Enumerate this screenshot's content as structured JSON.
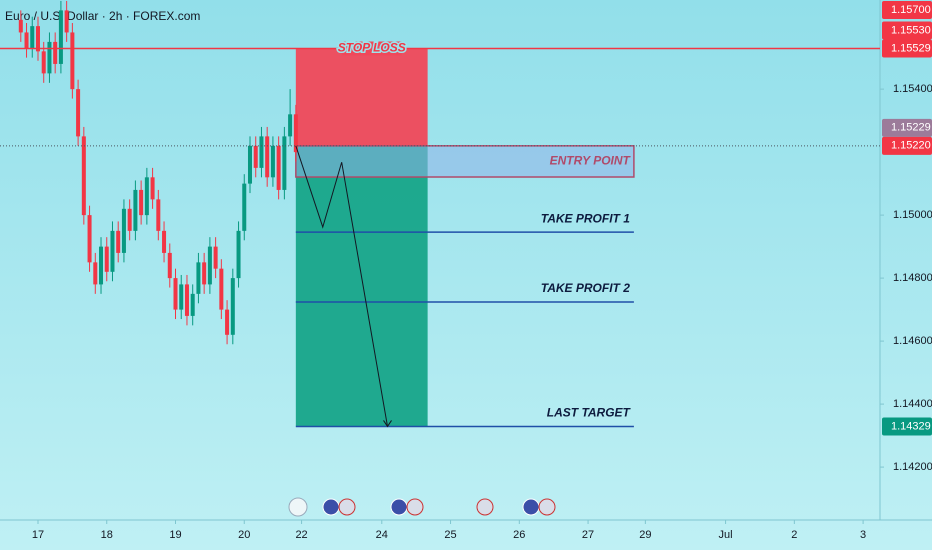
{
  "chart_data": {
    "type": "candlestick",
    "title": "Euro / U.S. Dollar · 2h · FOREX.com",
    "x": [
      -3,
      -2,
      -1,
      0,
      1,
      2,
      3,
      4,
      5,
      6,
      7,
      8,
      9,
      10,
      11,
      12,
      13,
      14,
      15,
      16,
      17,
      18,
      19,
      20,
      21,
      22,
      23,
      24,
      25,
      26,
      27,
      28,
      29,
      30,
      31,
      32,
      33,
      34,
      35,
      36,
      37,
      38,
      39,
      40,
      41,
      42,
      43,
      44,
      45
    ],
    "open": [
      1.1562,
      1.1558,
      1.1553,
      1.156,
      1.1552,
      1.1545,
      1.1555,
      1.1548,
      1.1565,
      1.1558,
      1.154,
      1.1525,
      1.15,
      1.1485,
      1.1478,
      1.149,
      1.1482,
      1.1495,
      1.1488,
      1.1502,
      1.1495,
      1.1508,
      1.15,
      1.1512,
      1.1505,
      1.1495,
      1.1488,
      1.148,
      1.147,
      1.1478,
      1.1468,
      1.1475,
      1.1485,
      1.1478,
      1.149,
      1.1483,
      1.147,
      1.1462,
      1.148,
      1.1495,
      1.151,
      1.1522,
      1.1515,
      1.1525,
      1.1512,
      1.1522,
      1.1508,
      1.1525,
      1.1532
    ],
    "high": [
      1.1565,
      1.1561,
      1.1563,
      1.1563,
      1.1555,
      1.1558,
      1.1558,
      1.1568,
      1.1568,
      1.1561,
      1.1543,
      1.1528,
      1.1503,
      1.1488,
      1.1493,
      1.1493,
      1.1498,
      1.1498,
      1.1505,
      1.1505,
      1.1511,
      1.1511,
      1.1515,
      1.1515,
      1.1508,
      1.1498,
      1.1491,
      1.1483,
      1.1481,
      1.1481,
      1.1478,
      1.1488,
      1.1488,
      1.1493,
      1.1493,
      1.1486,
      1.1473,
      1.1483,
      1.1498,
      1.1513,
      1.1525,
      1.1525,
      1.1528,
      1.1528,
      1.1525,
      1.1525,
      1.1528,
      1.154,
      1.1535
    ],
    "low": [
      1.1555,
      1.155,
      1.155,
      1.1549,
      1.1542,
      1.1542,
      1.1545,
      1.1545,
      1.1555,
      1.1537,
      1.1522,
      1.1497,
      1.1482,
      1.1475,
      1.1475,
      1.1479,
      1.1479,
      1.1485,
      1.1485,
      1.1492,
      1.1492,
      1.1497,
      1.1497,
      1.1502,
      1.1492,
      1.1485,
      1.1477,
      1.1467,
      1.1467,
      1.1465,
      1.1465,
      1.1472,
      1.1475,
      1.1475,
      1.148,
      1.1467,
      1.1459,
      1.1459,
      1.1477,
      1.1492,
      1.1507,
      1.1512,
      1.1512,
      1.1509,
      1.1509,
      1.1505,
      1.1505,
      1.1522,
      1.1517
    ],
    "close": [
      1.1558,
      1.1553,
      1.156,
      1.1552,
      1.1545,
      1.1555,
      1.1548,
      1.1565,
      1.1558,
      1.154,
      1.1525,
      1.15,
      1.1485,
      1.1478,
      1.149,
      1.1482,
      1.1495,
      1.1488,
      1.1502,
      1.1495,
      1.1508,
      1.15,
      1.1512,
      1.1505,
      1.1495,
      1.1488,
      1.148,
      1.147,
      1.1478,
      1.1468,
      1.1475,
      1.1485,
      1.1478,
      1.149,
      1.1483,
      1.147,
      1.1462,
      1.148,
      1.1495,
      1.151,
      1.1522,
      1.1515,
      1.1525,
      1.1512,
      1.1522,
      1.1508,
      1.1525,
      1.1532,
      1.152
    ],
    "up_color": "#089981",
    "down_color": "#f23645",
    "xlim": [
      -6.63,
      146.95
    ],
    "ylim": [
      1.14032,
      1.15683
    ],
    "xticks": [
      {
        "value": 0,
        "label": "17"
      },
      {
        "value": 12,
        "label": "18"
      },
      {
        "value": 24,
        "label": "19"
      },
      {
        "value": 36,
        "label": "20"
      },
      {
        "value": 46,
        "label": "22"
      },
      {
        "value": 60,
        "label": "24"
      },
      {
        "value": 72,
        "label": "25"
      },
      {
        "value": 84,
        "label": "26"
      },
      {
        "value": 96,
        "label": "27"
      },
      {
        "value": 106,
        "label": "29"
      },
      {
        "value": 120,
        "label": "Jul"
      },
      {
        "value": 132,
        "label": "2"
      },
      {
        "value": 144,
        "label": "3"
      }
    ],
    "yticks": [
      {
        "value": 1.154,
        "label": "1.15400"
      },
      {
        "value": 1.15,
        "label": "1.15000"
      },
      {
        "value": 1.148,
        "label": "1.14800"
      },
      {
        "value": 1.146,
        "label": "1.14600"
      },
      {
        "value": 1.144,
        "label": "1.14400"
      },
      {
        "value": 1.142,
        "label": "1.14200"
      }
    ],
    "price_labels": [
      {
        "value": 1.157,
        "label": "1.15700",
        "color": "#f23645"
      },
      {
        "value": 1.1553,
        "label": "1.15530",
        "color": "#f23645"
      },
      {
        "value": 1.15529,
        "label": "1.15529",
        "color": "#f23645"
      },
      {
        "value": 1.15229,
        "label": "1.15229",
        "color": "#9c7b9a"
      },
      {
        "value": 1.1522,
        "label": "1.15220",
        "color": "#f23645",
        "dotted": true
      },
      {
        "value": 1.14329,
        "label": "1.14329",
        "color": "#089981"
      }
    ],
    "stop_loss": {
      "value": 1.15529,
      "label": "STOP LOSS",
      "color": "#f23645"
    },
    "stop_zone": {
      "x": [
        45,
        68
      ],
      "y": [
        1.1522,
        1.15529
      ],
      "color": "#f0485a"
    },
    "profit_zone": {
      "x": [
        45,
        68
      ],
      "y": [
        1.14329,
        1.1522
      ],
      "color": "#17a589"
    },
    "entry_zone": {
      "label": "ENTRY POINT",
      "x": [
        45,
        104
      ],
      "y": [
        1.15121,
        1.1522
      ],
      "color": "#b04a6a"
    },
    "targets": [
      {
        "label": "TAKE PROFIT 1",
        "value": 1.14946
      },
      {
        "label": "TAKE PROFIT 2",
        "value": 1.14724
      },
      {
        "label": "LAST TARGET",
        "value": 1.14329
      }
    ],
    "target_x": [
      45,
      104
    ],
    "target_color": "#1f4fa8",
    "path": {
      "x": [
        45,
        49.7,
        53,
        61
      ],
      "y": [
        1.1522,
        1.14962,
        1.15168,
        1.14329
      ]
    }
  }
}
